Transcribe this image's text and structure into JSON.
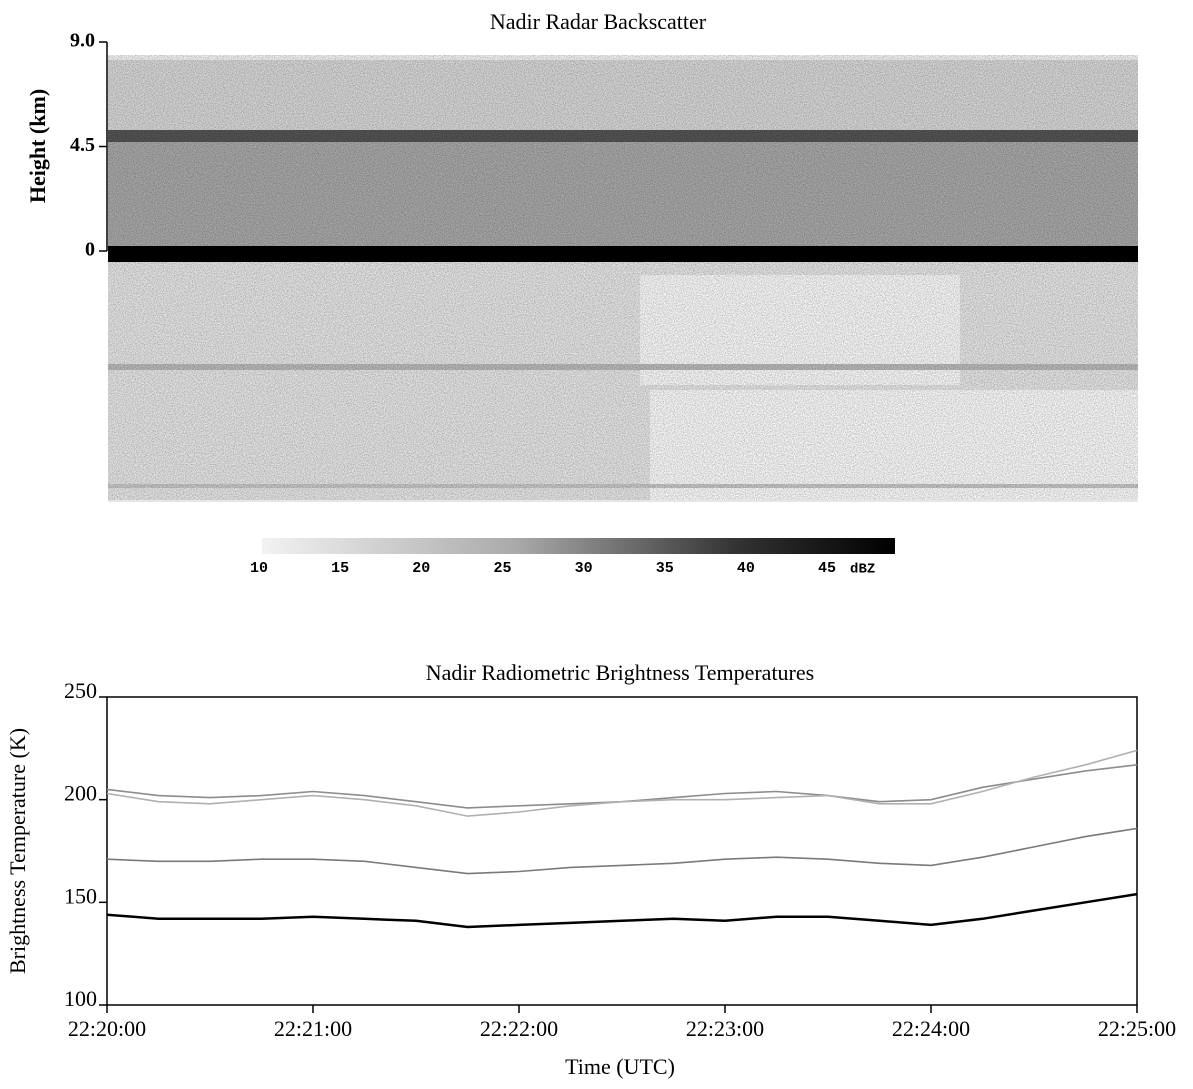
{
  "chart_data": [
    {
      "type": "image",
      "title": "Nadir Radar Backscatter",
      "ylabel": "Height (km)",
      "ylim": [
        0,
        9
      ],
      "yticks": [
        0,
        4.5,
        {
          "value": 9,
          "label": "9.0"
        }
      ],
      "colorbar": {
        "clim": [
          10,
          49
        ],
        "ticks": [
          10,
          15,
          20,
          25,
          30,
          35,
          40,
          45
        ],
        "label": "dBZ"
      }
    },
    {
      "type": "line",
      "title": "Nadir Radiometric Brightness Temperatures",
      "xlabel": "Time (UTC)",
      "ylabel": "Brightness Temperature (K)",
      "x": [
        "22:20:00",
        "22:20:15",
        "22:20:30",
        "22:20:45",
        "22:21:00",
        "22:21:15",
        "22:21:30",
        "22:21:45",
        "22:22:00",
        "22:22:15",
        "22:22:30",
        "22:22:45",
        "22:23:00",
        "22:23:15",
        "22:23:30",
        "22:23:45",
        "22:24:00",
        "22:24:15",
        "22:24:30",
        "22:24:45",
        "22:25:00"
      ],
      "xlim": [
        "22:20:00",
        "22:25:00"
      ],
      "xticks": [
        "22:20:00",
        "22:21:00",
        "22:22:00",
        "22:23:00",
        "22:24:00",
        "22:25:00"
      ],
      "ylim": [
        100,
        250
      ],
      "yticks": [
        100,
        150,
        200,
        250
      ],
      "series": [
        {
          "color": "#8c8c8c",
          "values": [
            205,
            202,
            201,
            202,
            204,
            202,
            199,
            196,
            197,
            198,
            199,
            201,
            203,
            204,
            202,
            199,
            200,
            206,
            210,
            214,
            217
          ]
        },
        {
          "color": "#b0b0b0",
          "values": [
            203,
            199,
            198,
            200,
            202,
            200,
            197,
            192,
            194,
            197,
            199,
            200,
            200,
            201,
            202,
            198,
            198,
            204,
            211,
            217,
            224
          ]
        },
        {
          "color": "#7a7a7a",
          "values": [
            171,
            170,
            170,
            171,
            171,
            170,
            167,
            164,
            165,
            167,
            168,
            169,
            171,
            172,
            171,
            169,
            168,
            172,
            177,
            182,
            186
          ]
        },
        {
          "color": "#000000",
          "values": [
            144,
            142,
            142,
            142,
            143,
            142,
            141,
            138,
            139,
            140,
            141,
            142,
            141,
            143,
            143,
            141,
            139,
            142,
            146,
            150,
            154
          ]
        }
      ]
    }
  ]
}
